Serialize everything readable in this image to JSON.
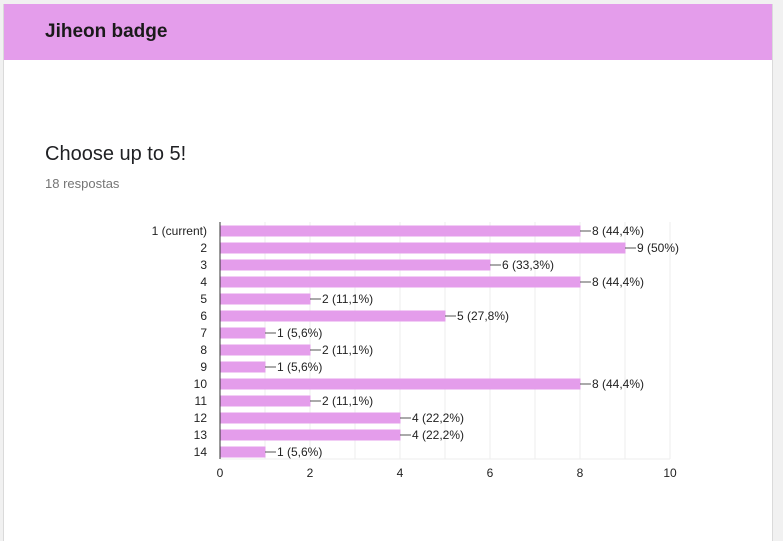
{
  "header": {
    "title": "Jiheon badge"
  },
  "question": {
    "title": "Choose up to 5!",
    "responses": "18 respostas"
  },
  "colors": {
    "header": "#e49deb",
    "bar": "#e49deb",
    "grid": "#eeeeee",
    "axis": "#333333"
  },
  "chart_data": {
    "type": "bar",
    "orientation": "horizontal",
    "categories": [
      "1 (current)",
      "2",
      "3",
      "4",
      "5",
      "6",
      "7",
      "8",
      "9",
      "10",
      "11",
      "12",
      "13",
      "14"
    ],
    "values": [
      8,
      9,
      6,
      8,
      2,
      5,
      1,
      2,
      1,
      8,
      2,
      4,
      4,
      1
    ],
    "data_labels": [
      "8 (44,4%)",
      "9 (50%)",
      "6 (33,3%)",
      "8 (44,4%)",
      "2 (11,1%)",
      "5 (27,8%)",
      "1 (5,6%)",
      "2 (11,1%)",
      "1 (5,6%)",
      "8 (44,4%)",
      "2 (11,1%)",
      "4 (22,2%)",
      "4 (22,2%)",
      "1 (5,6%)"
    ],
    "xlim": [
      0,
      10
    ],
    "xticks": [
      "0",
      "2",
      "4",
      "6",
      "8",
      "10"
    ],
    "grid": true,
    "legend": "none"
  }
}
